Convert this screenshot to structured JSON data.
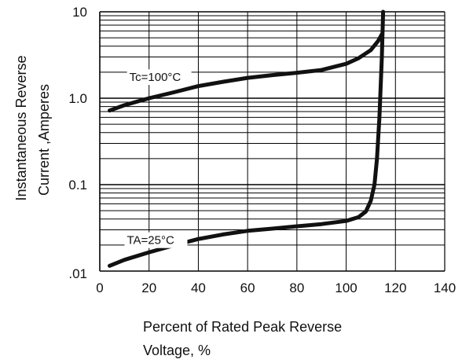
{
  "chart_data": {
    "type": "line",
    "xlabel_line1": "Percent of Rated Peak Reverse",
    "xlabel_line2": "Voltage, %",
    "ylabel_line1": "Instantaneous Reverse",
    "ylabel_line2": "Current ,Amperes",
    "xlim": [
      0,
      140
    ],
    "ylim": [
      0.01,
      10
    ],
    "y_scale": "log",
    "grid": true,
    "x_ticks": [
      0,
      20,
      40,
      60,
      80,
      100,
      120,
      140
    ],
    "x_tick_labels": [
      "0",
      "20",
      "40",
      "60",
      "80",
      "100",
      "120",
      "140"
    ],
    "y_ticks": [
      0.01,
      0.1,
      1,
      10
    ],
    "y_tick_labels": [
      ".01",
      "0.1",
      "1.0",
      "10"
    ],
    "series": [
      {
        "name": "Tc=100°C",
        "x": [
          4,
          10,
          20,
          30,
          40,
          50,
          60,
          70,
          80,
          90,
          100,
          105,
          110,
          113,
          114.5
        ],
        "y": [
          0.72,
          0.83,
          1.0,
          1.17,
          1.38,
          1.55,
          1.72,
          1.85,
          1.97,
          2.12,
          2.5,
          2.9,
          3.6,
          4.6,
          5.5
        ]
      },
      {
        "name": "TA=25°C",
        "x": [
          4,
          10,
          20,
          30,
          40,
          50,
          60,
          70,
          80,
          90,
          100,
          105,
          108,
          110,
          111.5,
          112.5,
          113.5,
          114.5,
          115
        ],
        "y": [
          0.0115,
          0.0135,
          0.0165,
          0.0198,
          0.0235,
          0.0265,
          0.0292,
          0.031,
          0.033,
          0.035,
          0.038,
          0.042,
          0.049,
          0.065,
          0.1,
          0.2,
          0.6,
          3.0,
          10.0
        ]
      }
    ]
  }
}
